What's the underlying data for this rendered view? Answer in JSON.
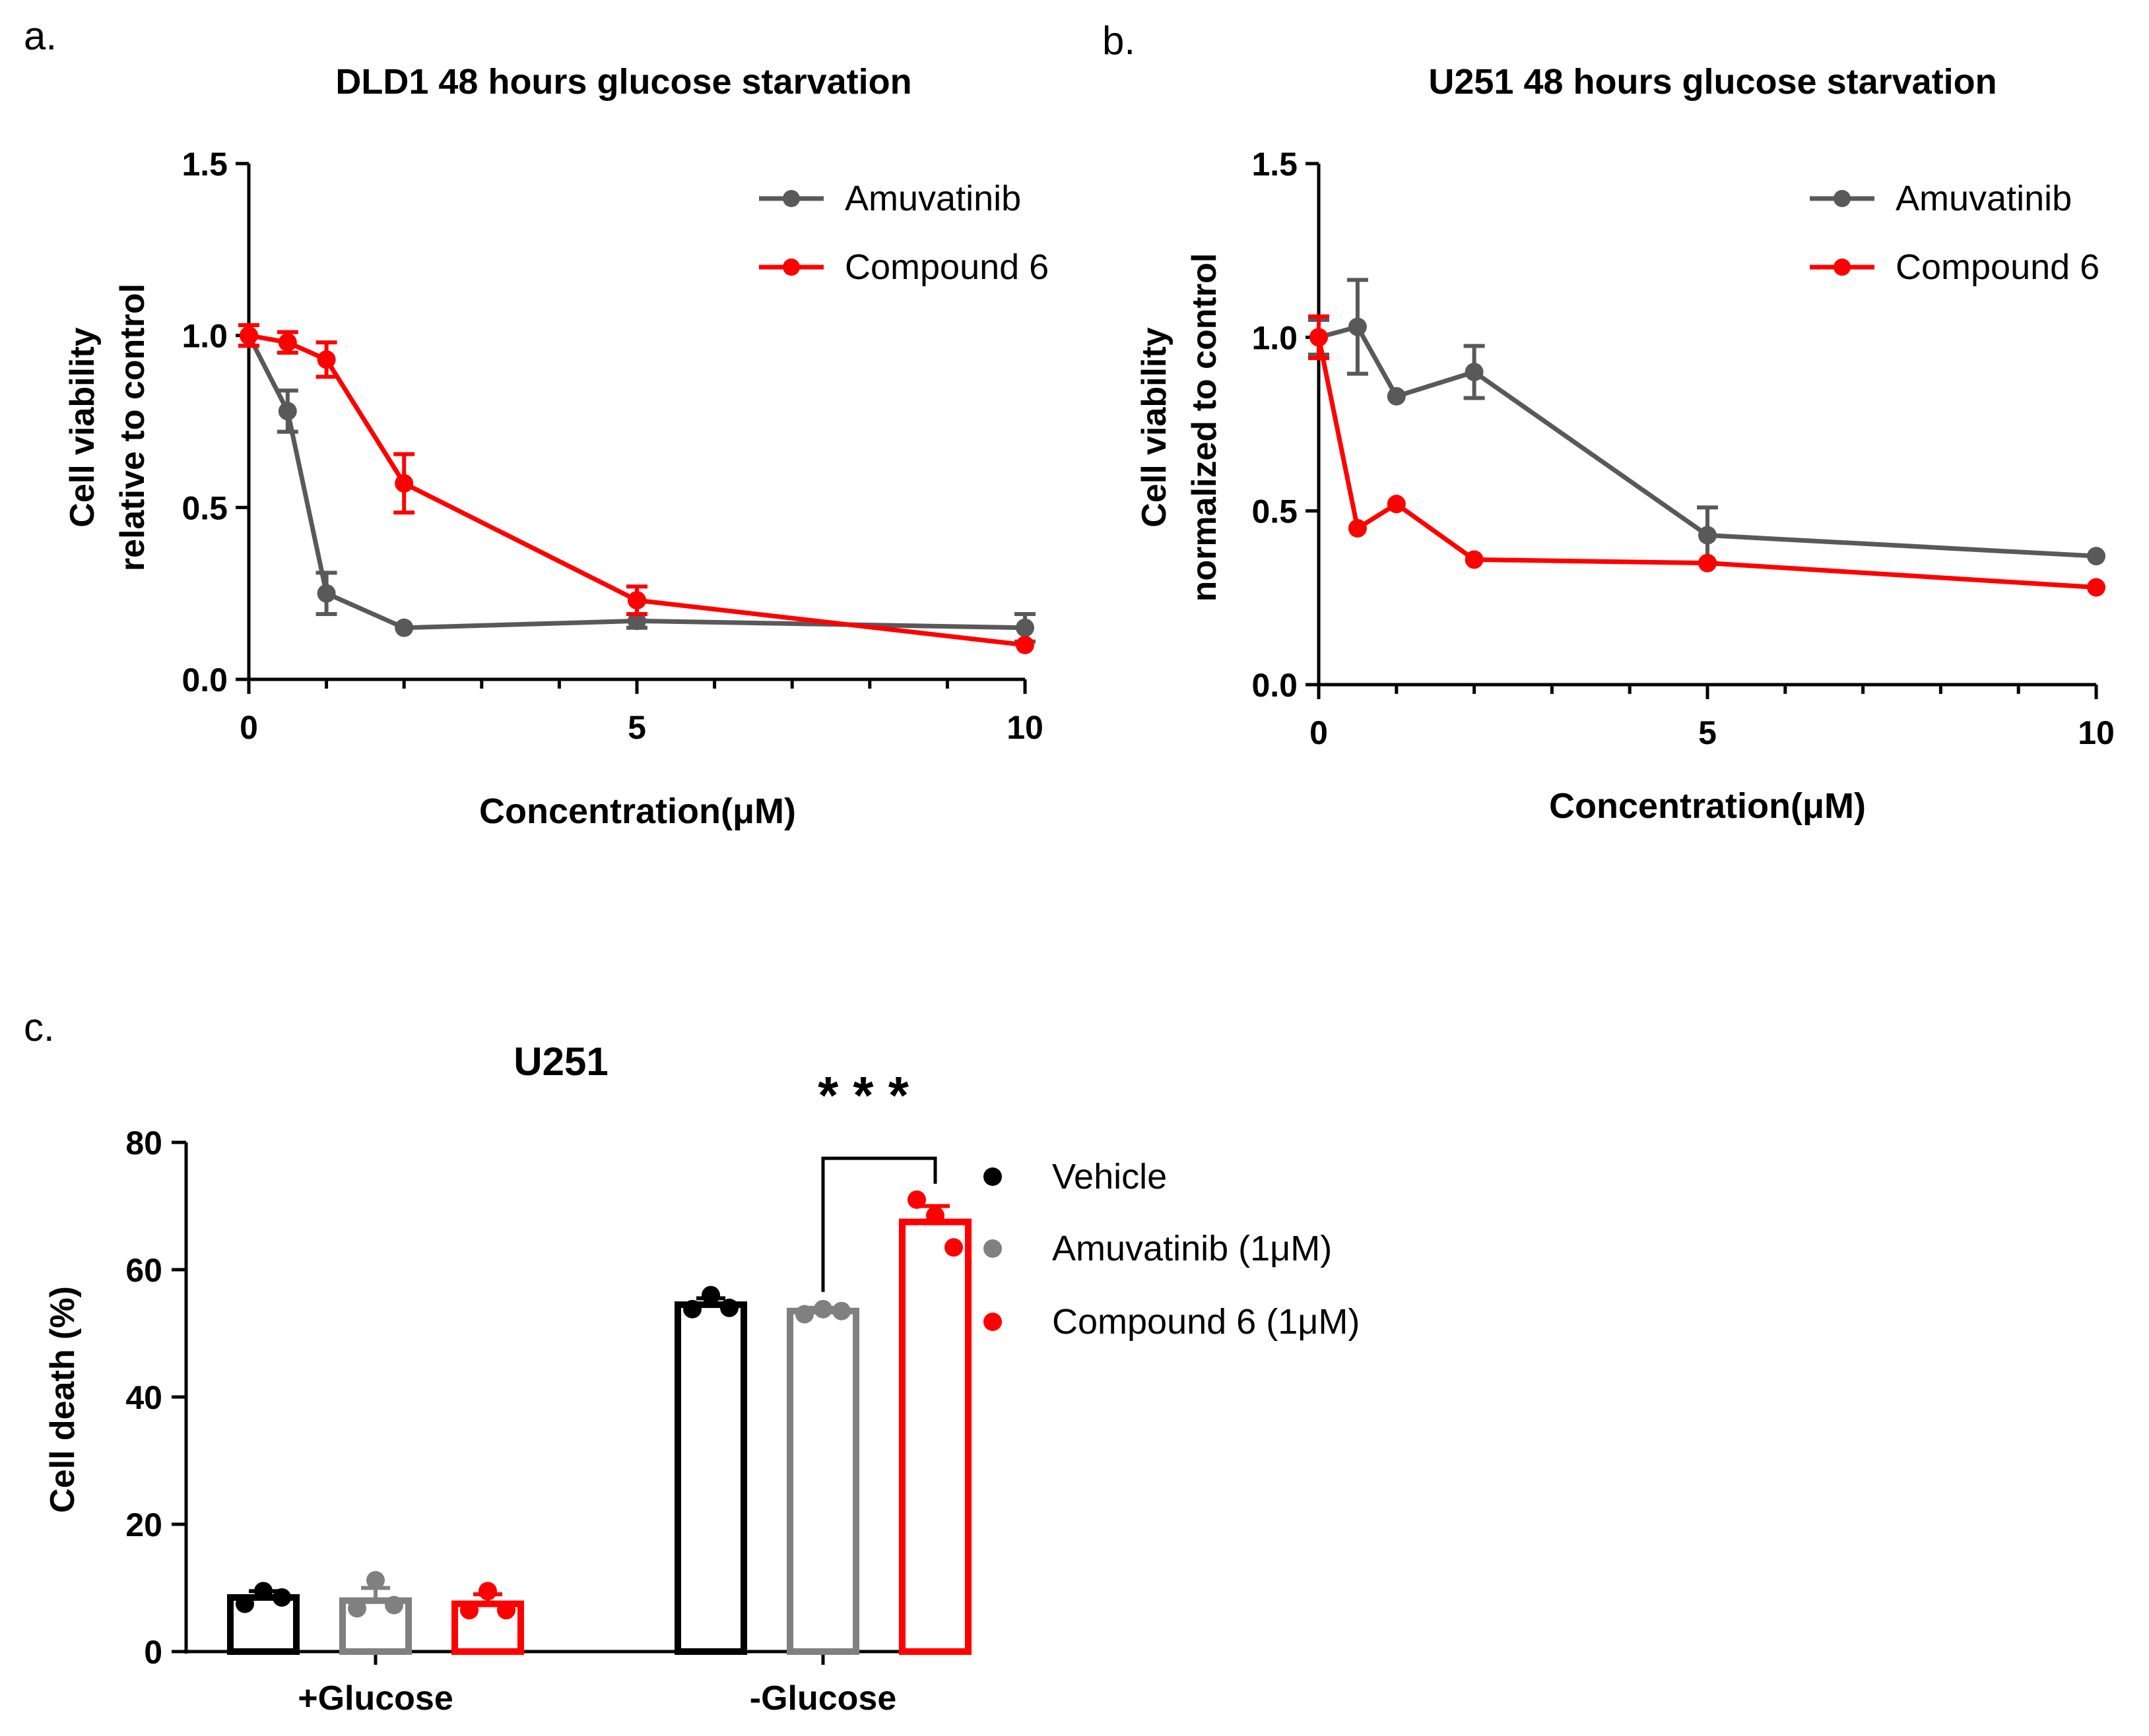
{
  "colors": {
    "gray_series": "#595959",
    "red_series": "#ff0000",
    "vehicle": "#000000",
    "amuvatinib_bar": "#808080",
    "compound6_bar": "#ff0000",
    "axis": "#000000"
  },
  "panels": {
    "a": {
      "letter": "a."
    },
    "b": {
      "letter": "b."
    },
    "c": {
      "letter": "c."
    }
  },
  "chart_data": [
    {
      "id": "a",
      "type": "line",
      "title": "DLD1  48 hours glucose starvation",
      "xlabel": "Concentration(μM)",
      "ylabel": [
        "Cell viability",
        "relative to control"
      ],
      "xlim": [
        0,
        10
      ],
      "ylim": [
        0,
        1.5
      ],
      "xticks": [
        0,
        5,
        10
      ],
      "xtick_labels": [
        "0",
        "5",
        "10"
      ],
      "yticks": [
        0,
        0.5,
        1.0,
        1.5
      ],
      "ytick_labels": [
        "0.0",
        "0.5",
        "1.0",
        "1.5"
      ],
      "legend_position": "top-right",
      "series": [
        {
          "name": "Amuvatinib",
          "color": "#595959",
          "x": [
            0,
            0.5,
            1,
            2,
            5,
            10
          ],
          "y": [
            1.0,
            0.78,
            0.25,
            0.15,
            0.17,
            0.15
          ],
          "err": [
            0.03,
            0.06,
            0.06,
            0.01,
            0.02,
            0.04
          ]
        },
        {
          "name": "Compound 6",
          "color": "#ff0000",
          "x": [
            0,
            0.5,
            1,
            2,
            5,
            10
          ],
          "y": [
            1.0,
            0.98,
            0.93,
            0.57,
            0.23,
            0.1
          ],
          "err": [
            0.03,
            0.03,
            0.05,
            0.085,
            0.04,
            0.015
          ]
        }
      ]
    },
    {
      "id": "b",
      "type": "line",
      "title": "U251  48 hours glucose starvation",
      "xlabel": "Concentration(μM)",
      "ylabel": [
        "Cell viability",
        "normalized to control"
      ],
      "xlim": [
        0,
        10
      ],
      "ylim": [
        0,
        1.5
      ],
      "xticks": [
        0,
        5,
        10
      ],
      "xtick_labels": [
        "0",
        "5",
        "10"
      ],
      "yticks": [
        0,
        0.5,
        1.0,
        1.5
      ],
      "ytick_labels": [
        "0.0",
        "0.5",
        "1.0",
        "1.5"
      ],
      "legend_position": "top-right",
      "series": [
        {
          "name": "Amuvatinib",
          "color": "#595959",
          "x": [
            0,
            0.5,
            1,
            2,
            5,
            10
          ],
          "y": [
            1.0,
            1.03,
            0.83,
            0.9,
            0.43,
            0.37
          ],
          "err": [
            0.05,
            0.135,
            0.01,
            0.075,
            0.08,
            0.01
          ]
        },
        {
          "name": "Compound 6",
          "color": "#ff0000",
          "x": [
            0,
            0.5,
            1,
            2,
            5,
            10
          ],
          "y": [
            1.0,
            0.45,
            0.52,
            0.36,
            0.35,
            0.28
          ],
          "err": [
            0.06,
            0.01,
            0.01,
            0.01,
            0.01,
            0.01
          ]
        }
      ]
    },
    {
      "id": "c",
      "type": "bar",
      "title": "U251",
      "xlabel": "",
      "ylabel": "Cell death (%)",
      "ylim": [
        0,
        80
      ],
      "yticks": [
        0,
        20,
        40,
        60,
        80
      ],
      "ytick_labels": [
        "0",
        "20",
        "40",
        "60",
        "80"
      ],
      "categories": [
        "+Glucose",
        "-Glucose"
      ],
      "legend_position": "right",
      "series": [
        {
          "name": "Vehicle",
          "color": "#000000",
          "values": [
            8.5,
            54.5
          ],
          "err": [
            1.0,
            1.0
          ],
          "points": [
            [
              7.5,
              9.5,
              8.5
            ],
            [
              53.8,
              56.0,
              54.0
            ]
          ]
        },
        {
          "name": "Amuvatinib (1μM)",
          "color": "#808080",
          "values": [
            8.0,
            53.5
          ],
          "err": [
            2.0,
            0.5
          ],
          "points": [
            [
              6.8,
              11.2,
              7.3
            ],
            [
              53.0,
              53.8,
              53.5
            ]
          ]
        },
        {
          "name": "Compound 6 (1μM)",
          "color": "#ff0000",
          "values": [
            7.5,
            67.5
          ],
          "err": [
            1.5,
            2.5
          ],
          "points": [
            [
              6.5,
              9.5,
              6.5
            ],
            [
              71.0,
              68.5,
              63.5
            ]
          ]
        }
      ],
      "annotations": [
        {
          "text": "* * *",
          "between": [
            "Amuvatinib (1μM)",
            "Compound 6 (1μM)"
          ],
          "category": "-Glucose"
        }
      ]
    }
  ]
}
